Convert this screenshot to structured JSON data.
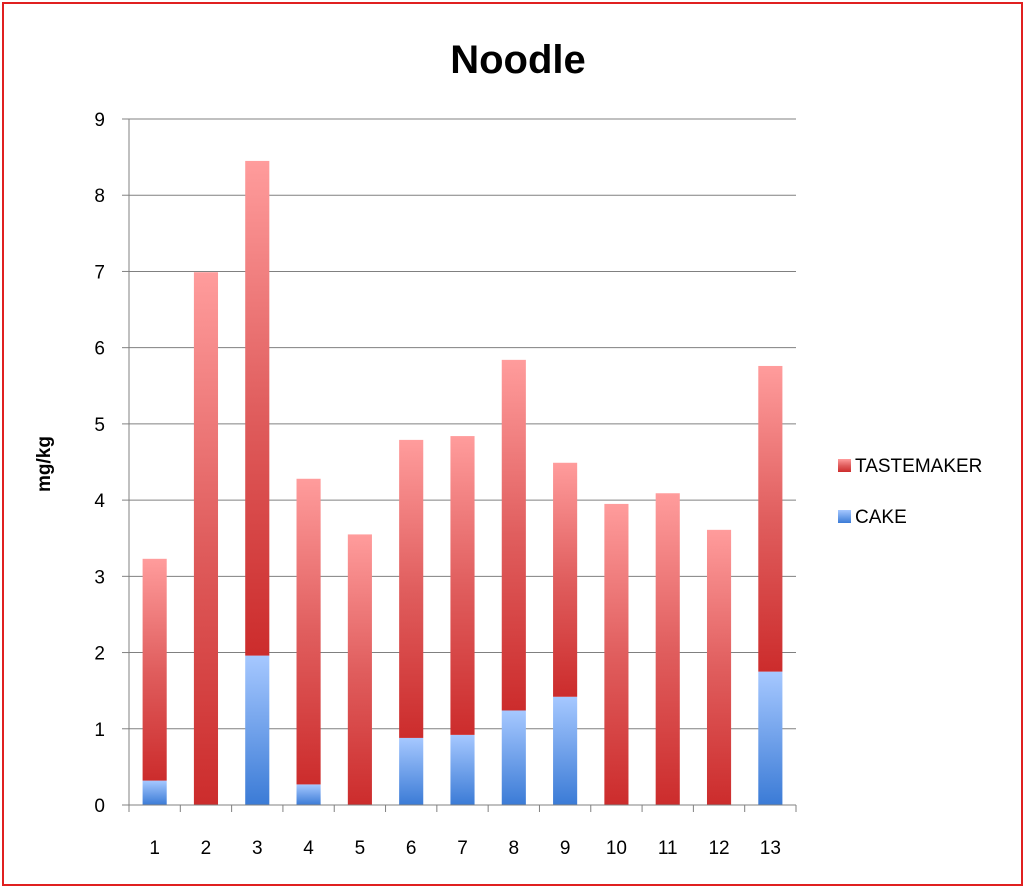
{
  "chart_data": {
    "type": "bar",
    "stacked": true,
    "title": "Noodle",
    "xlabel": "",
    "ylabel": "mg/kg",
    "categories": [
      "1",
      "2",
      "3",
      "4",
      "5",
      "6",
      "7",
      "8",
      "9",
      "10",
      "11",
      "12",
      "13"
    ],
    "series": [
      {
        "name": "CAKE",
        "color": "#4a86d8",
        "values": [
          0.32,
          0,
          1.96,
          0.27,
          0,
          0.88,
          0.92,
          1.24,
          1.42,
          0,
          0,
          0,
          1.75
        ]
      },
      {
        "name": "TASTEMAKER",
        "color": "#d9413e",
        "values": [
          2.91,
          6.99,
          6.49,
          4.01,
          3.55,
          3.91,
          3.92,
          4.6,
          3.07,
          3.95,
          4.09,
          3.61,
          4.01
        ]
      }
    ],
    "ylim": [
      0,
      9
    ],
    "yticks": [
      "0",
      "1",
      "2",
      "3",
      "4",
      "5",
      "6",
      "7",
      "8",
      "9"
    ],
    "grid": true,
    "legend_position": "right",
    "legend": [
      "TASTEMAKER",
      "CAKE"
    ]
  },
  "colors": {
    "border": "#e02020",
    "grid": "#808080"
  }
}
